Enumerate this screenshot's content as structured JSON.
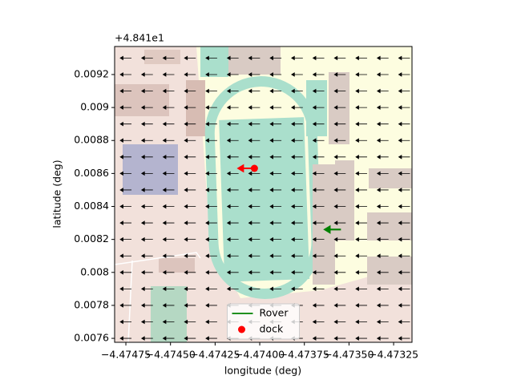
{
  "chart_data": {
    "type": "quiver-map",
    "x_label": "longitude (deg)",
    "y_label": "latitude (deg)",
    "y_offset_text": "+4.841e1",
    "xlim": [
      -4.474813,
      -4.473147
    ],
    "ylim": [
      0.007576,
      0.00937
    ],
    "xticks": [
      {
        "value": -4.47475,
        "label": "−4.47475"
      },
      {
        "value": -4.4745,
        "label": "−4.47450"
      },
      {
        "value": -4.47425,
        "label": "−4.47425"
      },
      {
        "value": -4.474,
        "label": "−4.47400"
      },
      {
        "value": -4.47375,
        "label": "−4.47375"
      },
      {
        "value": -4.4735,
        "label": "−4.47350"
      },
      {
        "value": -4.47325,
        "label": "−4.47325"
      }
    ],
    "yticks": [
      0.0076,
      0.0078,
      0.008,
      0.0082,
      0.0084,
      0.0086,
      0.0088,
      0.009,
      0.0092
    ],
    "quiver": {
      "color": "#000000",
      "u": -1,
      "v": 0,
      "x": [
        -4.47475,
        -4.47463,
        -4.47451,
        -4.47439,
        -4.47427,
        -4.47415,
        -4.47403,
        -4.47391,
        -4.47379,
        -4.47367,
        -4.47355,
        -4.47343,
        -4.47331,
        -4.47319
      ],
      "y": [
        0.0076,
        0.0077,
        0.0078,
        0.0079,
        0.008,
        0.0081,
        0.0082,
        0.0083,
        0.0084,
        0.0085,
        0.0086,
        0.0087,
        0.0088,
        0.0089,
        0.009,
        0.0091,
        0.0092,
        0.0093
      ]
    },
    "series": [
      {
        "name": "Rover",
        "color": "#008000",
        "marker": "arrow",
        "x": [
          -4.47359
        ],
        "y": [
          0.00826
        ],
        "u": -1,
        "v": 0
      },
      {
        "name": "dock",
        "color": "#ff0000",
        "marker": "dot",
        "x": [
          -4.47403
        ],
        "y": [
          0.008631
        ],
        "u": -1,
        "v": 0
      }
    ],
    "legend": "lower center"
  }
}
